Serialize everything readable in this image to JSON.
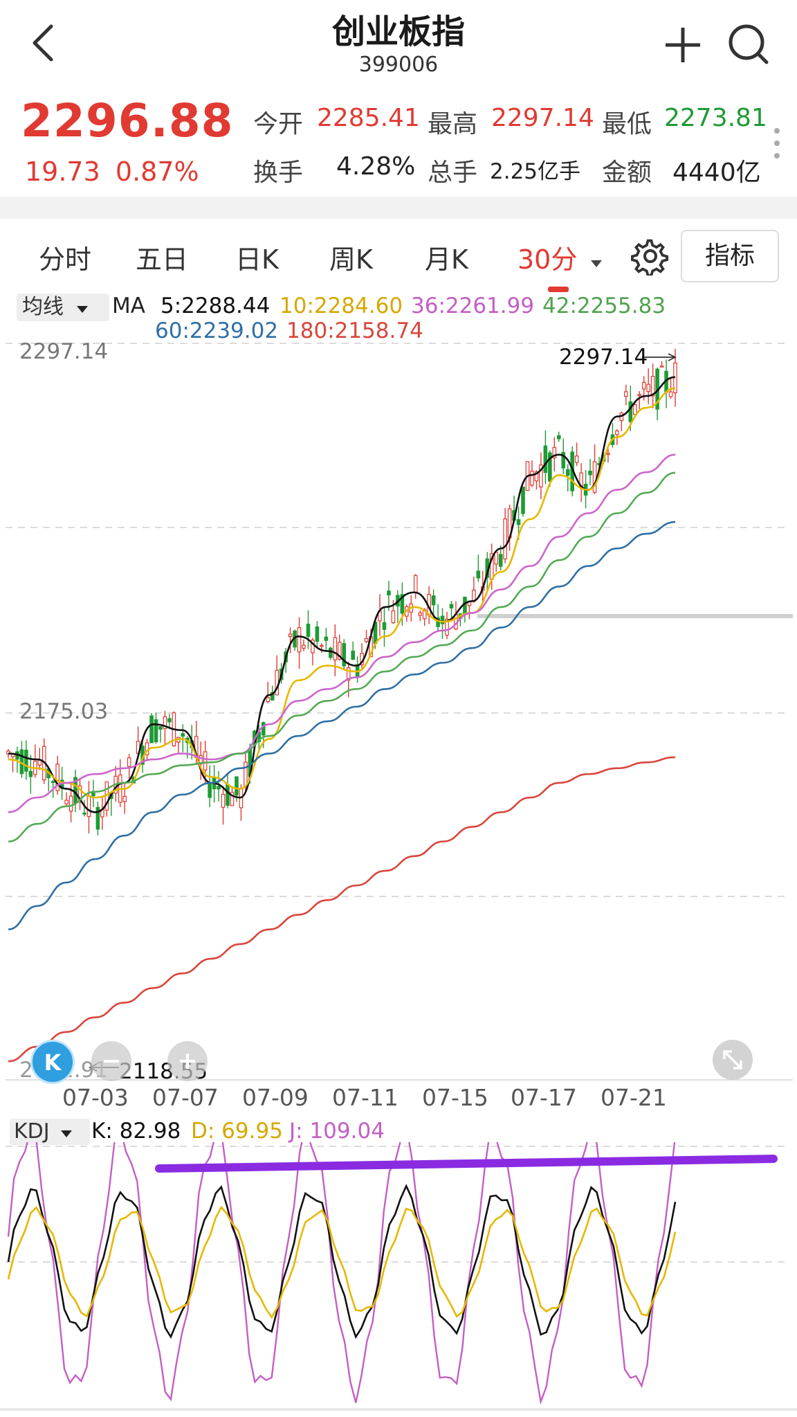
{
  "header": {
    "title": "创业板指",
    "code": "399006",
    "back_icon": "chevron-left-icon",
    "add_icon": "plus-icon",
    "search_icon": "search-icon"
  },
  "quote": {
    "price": "2296.88",
    "change": "19.73",
    "change_pct": "0.87%",
    "open_label": "今开",
    "open": "2285.41",
    "high_label": "最高",
    "high": "2297.14",
    "low_label": "最低",
    "low": "2273.81",
    "turnover_label": "换手",
    "turnover": "4.28%",
    "volume_label": "总手",
    "volume": "2.25亿手",
    "amount_label": "金额",
    "amount": "4440亿"
  },
  "tabs": {
    "items": [
      "分时",
      "五日",
      "日K",
      "周K",
      "月K",
      "30分"
    ],
    "active": "30分",
    "indicator_button": "指标"
  },
  "ma": {
    "selector": "均线",
    "prefix": "MA",
    "ma5": "5:2288.44",
    "ma10": "10:2284.60",
    "ma36": "36:2261.99",
    "ma42": "42:2255.83",
    "ma60": "60:2239.02",
    "ma180": "180:2158.74"
  },
  "price_axis": {
    "top": "2297.14",
    "mid": "2175.03",
    "bottom": "2052.91"
  },
  "annotations": {
    "high_marker": "2297.14",
    "low_marker": "2118.55"
  },
  "dates": [
    "07-03",
    "07-07",
    "07-09",
    "07-11",
    "07-15",
    "07-17",
    "07-21"
  ],
  "kdj": {
    "selector": "KDJ",
    "k": "K: 82.98",
    "d": "D: 69.95",
    "j": "J: 109.04"
  },
  "colors": {
    "up": "#e03a32",
    "down": "#1f9a35",
    "ma5": "#111111",
    "ma10": "#e6b800",
    "ma36": "#cc66cc",
    "ma42": "#55aa55",
    "ma60": "#2f6fa5",
    "ma180": "#d9453b",
    "trendline": "#8a2be2"
  },
  "chart_data": {
    "type": "candlestick",
    "period": "30分",
    "ylim": [
      2052.91,
      2297.14
    ],
    "y_ticks": [
      2297.14,
      2175.03,
      2052.91
    ],
    "x_ticks": [
      "07-03",
      "07-07",
      "07-09",
      "07-11",
      "07-15",
      "07-17",
      "07-21"
    ],
    "series": [
      {
        "name": "MA5",
        "values": [
          2160,
          2158,
          2148,
          2140,
          2150,
          2170,
          2168,
          2150,
          2145,
          2180,
          2200,
          2195,
          2190,
          2210,
          2215,
          2205,
          2212,
          2230,
          2255,
          2262,
          2250,
          2275,
          2282,
          2288.44
        ]
      },
      {
        "name": "MA10",
        "values": [
          2158,
          2155,
          2150,
          2145,
          2148,
          2162,
          2165,
          2152,
          2148,
          2165,
          2185,
          2190,
          2188,
          2200,
          2210,
          2205,
          2208,
          2222,
          2240,
          2255,
          2250,
          2268,
          2278,
          2284.6
        ]
      },
      {
        "name": "MA36",
        "values": [
          2140,
          2145,
          2150,
          2153,
          2155,
          2158,
          2160,
          2158,
          2160,
          2170,
          2178,
          2182,
          2186,
          2193,
          2198,
          2202,
          2208,
          2216,
          2224,
          2234,
          2242,
          2250,
          2256,
          2261.99
        ]
      },
      {
        "name": "MA42",
        "values": [
          2130,
          2136,
          2142,
          2147,
          2150,
          2153,
          2156,
          2157,
          2160,
          2166,
          2173,
          2178,
          2182,
          2188,
          2193,
          2197,
          2202,
          2210,
          2217,
          2226,
          2234,
          2242,
          2249,
          2255.83
        ]
      },
      {
        "name": "MA60",
        "values": [
          2100,
          2108,
          2116,
          2124,
          2132,
          2140,
          2146,
          2150,
          2155,
          2160,
          2166,
          2171,
          2176,
          2182,
          2187,
          2191,
          2196,
          2203,
          2210,
          2217,
          2224,
          2230,
          2235,
          2239.02
        ]
      },
      {
        "name": "MA180",
        "values": [
          2055,
          2060,
          2065,
          2070,
          2075,
          2080,
          2085,
          2090,
          2095,
          2100,
          2105,
          2110,
          2115,
          2120,
          2125,
          2130,
          2135,
          2140,
          2145,
          2150,
          2153,
          2155,
          2157,
          2158.74
        ]
      }
    ]
  }
}
